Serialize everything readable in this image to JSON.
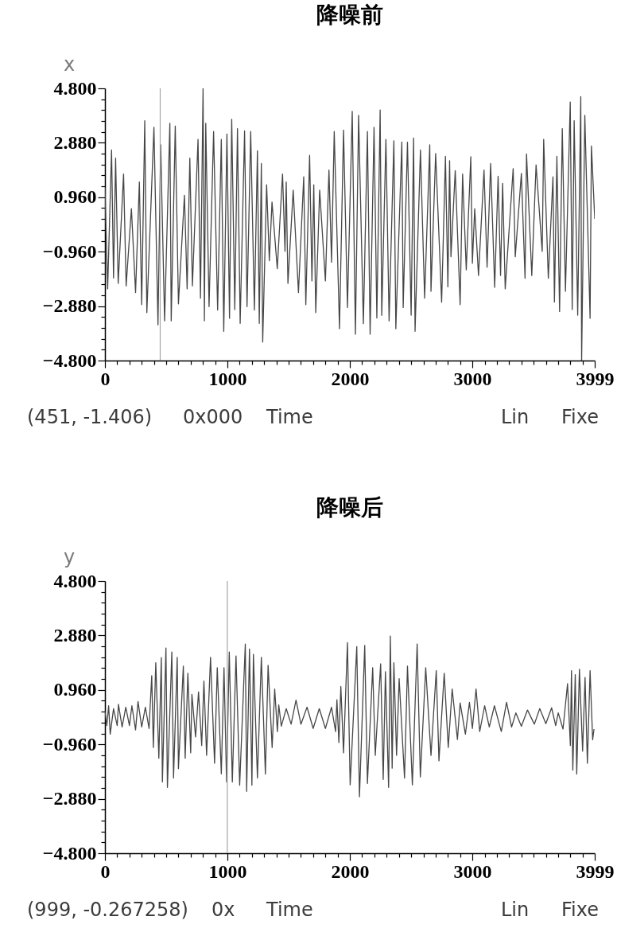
{
  "chart_data": [
    {
      "type": "line",
      "title": "降噪前",
      "color": "#474747",
      "x": [
        0,
        22,
        54,
        70,
        87,
        108,
        152,
        173,
        216,
        250,
        281,
        300,
        325,
        342,
        400,
        433,
        455,
        487,
        530,
        541,
        574,
        600,
        649,
        671,
        693,
        714,
        760,
        780,
        801,
        812,
        823,
        850,
        887,
        920,
        950,
        970,
        996,
        1017,
        1035,
        1060,
        1082,
        1104,
        1140,
        1160,
        1190,
        1220,
        1245,
        1260,
        1277,
        1288,
        1320,
        1342,
        1364,
        1407,
        1450,
        1470,
        1480,
        1494,
        1537,
        1580,
        1623,
        1640,
        1671,
        1690,
        1705,
        1721,
        1753,
        1800,
        1829,
        1850,
        1872,
        1915,
        1948,
        1980,
        2019,
        2045,
        2071,
        2110,
        2143,
        2165,
        2197,
        2220,
        2247,
        2260,
        2294,
        2320,
        2359,
        2375,
        2424,
        2435,
        2470,
        2500,
        2520,
        2532,
        2576,
        2610,
        2652,
        2662,
        2700,
        2749,
        2780,
        2800,
        2814,
        2825,
        2860,
        2900,
        2920,
        2950,
        2987,
        3000,
        3019,
        3050,
        3095,
        3120,
        3149,
        3182,
        3210,
        3230,
        3247,
        3268,
        3333,
        3350,
        3400,
        3430,
        3442,
        3485,
        3520,
        3570,
        3582,
        3620,
        3658,
        3670,
        3690,
        3712,
        3734,
        3760,
        3799,
        3815,
        3831,
        3860,
        3885,
        3892,
        3918,
        3961,
        3972,
        3999
      ],
      "values": [
        1.3,
        -2.27,
        2.63,
        -1.89,
        2.34,
        -2.08,
        1.78,
        -2.17,
        0.56,
        -2.4,
        1.5,
        -2.83,
        3.66,
        -3.11,
        3.43,
        -3.54,
        2.81,
        -3.4,
        3.57,
        -3.4,
        3.47,
        -2.8,
        1.03,
        -2.27,
        2.34,
        -2.17,
        3.0,
        -2.6,
        4.8,
        -3.4,
        3.57,
        -2.9,
        3.28,
        -3.02,
        3.0,
        -3.77,
        3.19,
        -3.31,
        3.71,
        -3.0,
        3.38,
        -3.49,
        3.3,
        -2.9,
        3.28,
        -3.02,
        2.6,
        -3.49,
        2.15,
        -4.15,
        1.4,
        -1.28,
        0.79,
        -1.56,
        1.78,
        -0.95,
        1.5,
        -2.08,
        1.21,
        -2.4,
        1.68,
        -2.83,
        2.44,
        -1.99,
        1.4,
        -3.11,
        1.21,
        -1.99,
        1.92,
        -1.33,
        3.28,
        -3.68,
        3.33,
        -2.93,
        3.99,
        -3.87,
        3.85,
        -3.5,
        3.28,
        -3.87,
        3.43,
        -3.3,
        4.04,
        -3.21,
        3.0,
        -3.4,
        2.95,
        -3.68,
        2.91,
        -2.93,
        2.9,
        -3.2,
        3.05,
        -3.77,
        2.63,
        -2.6,
        2.81,
        -2.36,
        2.5,
        -2.74,
        2.4,
        -2.2,
        2.25,
        -1.14,
        1.9,
        -2.83,
        1.78,
        -1.6,
        2.39,
        -1.37,
        0.56,
        -1.8,
        1.92,
        -1.51,
        2.15,
        -2.22,
        1.7,
        -1.8,
        1.45,
        -2.27,
        1.97,
        -1.14,
        1.8,
        -1.9,
        2.49,
        -1.8,
        2.1,
        -0.95,
        3.0,
        -1.9,
        1.68,
        -2.74,
        2.4,
        -3.07,
        3.38,
        -2.36,
        4.32,
        -3.0,
        3.66,
        -3.2,
        4.51,
        -4.8,
        3.85,
        -3.31,
        2.77,
        0.2
      ],
      "xlim": [
        0,
        3999
      ],
      "ylim": [
        -4.8,
        4.8
      ],
      "xticks": [
        0,
        {
          "value": 100,
          "label": null
        },
        {
          "value": 200,
          "label": null
        },
        {
          "value": 300,
          "label": null
        },
        {
          "value": 400,
          "label": null
        },
        {
          "value": 500,
          "label": null
        },
        {
          "value": 600,
          "label": null
        },
        {
          "value": 700,
          "label": null
        },
        {
          "value": 800,
          "label": null
        },
        {
          "value": 900,
          "label": null
        },
        1000,
        {
          "value": 1100,
          "label": null
        },
        {
          "value": 1200,
          "label": null
        },
        {
          "value": 1300,
          "label": null
        },
        {
          "value": 1400,
          "label": null
        },
        {
          "value": 1500,
          "label": null
        },
        {
          "value": 1600,
          "label": null
        },
        {
          "value": 1700,
          "label": null
        },
        {
          "value": 1800,
          "label": null
        },
        {
          "value": 1900,
          "label": null
        },
        2000,
        {
          "value": 2100,
          "label": null
        },
        {
          "value": 2200,
          "label": null
        },
        {
          "value": 2300,
          "label": null
        },
        {
          "value": 2400,
          "label": null
        },
        {
          "value": 2500,
          "label": null
        },
        {
          "value": 2600,
          "label": null
        },
        {
          "value": 2700,
          "label": null
        },
        {
          "value": 2800,
          "label": null
        },
        {
          "value": 2900,
          "label": null
        },
        3000,
        {
          "value": 3100,
          "label": null
        },
        {
          "value": 3200,
          "label": null
        },
        {
          "value": 3300,
          "label": null
        },
        {
          "value": 3400,
          "label": null
        },
        {
          "value": 3500,
          "label": null
        },
        {
          "value": 3600,
          "label": null
        },
        {
          "value": 3700,
          "label": null
        },
        {
          "value": 3800,
          "label": null
        },
        {
          "value": 3900,
          "label": null
        },
        3999
      ],
      "yticks": [
        {
          "value": 4.8,
          "label": "4.800"
        },
        {
          "value": 4.416,
          "label": null
        },
        {
          "value": 4.032,
          "label": null
        },
        {
          "value": 3.648,
          "label": null
        },
        {
          "value": 3.264,
          "label": null
        },
        {
          "value": 2.88,
          "label": "2.880"
        },
        {
          "value": 2.496,
          "label": null
        },
        {
          "value": 2.112,
          "label": null
        },
        {
          "value": 1.728,
          "label": null
        },
        {
          "value": 1.344,
          "label": null
        },
        {
          "value": 0.96,
          "label": "0.960"
        },
        {
          "value": 0.576,
          "label": null
        },
        {
          "value": 0.192,
          "label": null
        },
        {
          "value": -0.192,
          "label": null
        },
        {
          "value": -0.576,
          "label": null
        },
        {
          "value": -0.96,
          "label": "−0.960"
        },
        {
          "value": -1.344,
          "label": null
        },
        {
          "value": -1.728,
          "label": null
        },
        {
          "value": -2.112,
          "label": null
        },
        {
          "value": -2.496,
          "label": null
        },
        {
          "value": -2.88,
          "label": "−2.880"
        },
        {
          "value": -3.264,
          "label": null
        },
        {
          "value": -3.648,
          "label": null
        },
        {
          "value": -4.032,
          "label": null
        },
        {
          "value": -4.416,
          "label": null
        },
        {
          "value": -4.8,
          "label": "−4.800"
        }
      ],
      "ref_lines": [
        {
          "axis": "x",
          "value": 451,
          "color": "#a6a6a6"
        }
      ],
      "annotations": [
        "x",
        "(451, -1.406)",
        "0x000",
        "Time",
        "Lin",
        "Fixe"
      ]
    },
    {
      "type": "line",
      "title": "降噪后",
      "color": "#474747",
      "x": [
        0,
        15,
        30,
        43,
        70,
        100,
        110,
        140,
        170,
        200,
        220,
        250,
        270,
        300,
        330,
        360,
        382,
        395,
        415,
        440,
        460,
        469,
        498,
        510,
        546,
        560,
        590,
        600,
        640,
        655,
        677,
        700,
        710,
        740,
        764,
        790,
        808,
        830,
        862,
        895,
        917,
        950,
        972,
        993,
        1015,
        1040,
        1070,
        1100,
        1146,
        1157,
        1180,
        1200,
        1212,
        1245,
        1277,
        1310,
        1332,
        1365,
        1386,
        1408,
        1419,
        1440,
        1480,
        1520,
        1560,
        1600,
        1650,
        1700,
        1750,
        1800,
        1850,
        1883,
        1894,
        1910,
        1926,
        1948,
        1980,
        2002,
        2056,
        2078,
        2121,
        2143,
        2186,
        2207,
        2251,
        2272,
        2290,
        2316,
        2330,
        2345,
        2359,
        2381,
        2402,
        2446,
        2470,
        2510,
        2549,
        2575,
        2619,
        2662,
        2705,
        2727,
        2770,
        2803,
        2835,
        2878,
        2900,
        2943,
        2976,
        3000,
        3030,
        3060,
        3100,
        3138,
        3180,
        3236,
        3279,
        3320,
        3355,
        3400,
        3450,
        3506,
        3550,
        3600,
        3647,
        3680,
        3701,
        3740,
        3777,
        3800,
        3809,
        3820,
        3840,
        3852,
        3874,
        3900,
        3920,
        3939,
        3961,
        3982,
        3993
      ],
      "values": [
        0.2,
        -0.3,
        0.4,
        -0.6,
        0.3,
        -0.3,
        0.45,
        -0.35,
        0.35,
        -0.3,
        0.4,
        -0.45,
        0.55,
        -0.35,
        0.35,
        -0.4,
        1.46,
        -1.07,
        1.92,
        -1.45,
        2.1,
        -2.29,
        2.44,
        -2.48,
        2.3,
        -2.15,
        2.11,
        -1.82,
        1.8,
        -1.45,
        1.55,
        -1.26,
        0.8,
        -0.7,
        0.89,
        -1.0,
        1.27,
        -1.35,
        2.11,
        -1.63,
        1.74,
        -2.0,
        1.74,
        -2.29,
        2.3,
        -2.29,
        2.16,
        -2.4,
        2.58,
        -2.62,
        2.4,
        -2.4,
        2.21,
        -2.15,
        2.11,
        -2.01,
        1.83,
        -1.07,
        0.99,
        -0.51,
        0.43,
        -0.32,
        0.3,
        -0.25,
        0.6,
        -0.25,
        0.35,
        -0.4,
        0.3,
        -0.4,
        0.35,
        -0.51,
        0.61,
        -0.9,
        1.08,
        -1.26,
        2.63,
        -2.39,
        2.49,
        -2.81,
        2.53,
        -2.34,
        1.74,
        -1.35,
        1.88,
        -2.2,
        1.6,
        -2.48,
        2.86,
        -1.8,
        1.92,
        -1.35,
        1.36,
        -2.15,
        1.8,
        -2.39,
        2.58,
        -2.11,
        1.74,
        -1.35,
        1.64,
        -1.54,
        1.55,
        -1.07,
        0.99,
        -0.79,
        0.5,
        -0.6,
        0.52,
        -0.4,
        0.99,
        -0.51,
        0.4,
        -0.35,
        0.4,
        -0.51,
        0.52,
        -0.35,
        0.15,
        -0.32,
        0.25,
        -0.25,
        0.3,
        -0.23,
        0.33,
        -0.3,
        0.15,
        -0.42,
        1.18,
        -1.0,
        1.64,
        -1.87,
        1.5,
        -2.01,
        1.69,
        -1.2,
        1.4,
        -1.63,
        1.64,
        -0.8,
        -0.42
      ],
      "xlim": [
        0,
        3999
      ],
      "ylim": [
        -4.8,
        4.8
      ],
      "xticks": [
        0,
        {
          "value": 100,
          "label": null
        },
        {
          "value": 200,
          "label": null
        },
        {
          "value": 300,
          "label": null
        },
        {
          "value": 400,
          "label": null
        },
        {
          "value": 500,
          "label": null
        },
        {
          "value": 600,
          "label": null
        },
        {
          "value": 700,
          "label": null
        },
        {
          "value": 800,
          "label": null
        },
        {
          "value": 900,
          "label": null
        },
        1000,
        {
          "value": 1100,
          "label": null
        },
        {
          "value": 1200,
          "label": null
        },
        {
          "value": 1300,
          "label": null
        },
        {
          "value": 1400,
          "label": null
        },
        {
          "value": 1500,
          "label": null
        },
        {
          "value": 1600,
          "label": null
        },
        {
          "value": 1700,
          "label": null
        },
        {
          "value": 1800,
          "label": null
        },
        {
          "value": 1900,
          "label": null
        },
        2000,
        {
          "value": 2100,
          "label": null
        },
        {
          "value": 2200,
          "label": null
        },
        {
          "value": 2300,
          "label": null
        },
        {
          "value": 2400,
          "label": null
        },
        {
          "value": 2500,
          "label": null
        },
        {
          "value": 2600,
          "label": null
        },
        {
          "value": 2700,
          "label": null
        },
        {
          "value": 2800,
          "label": null
        },
        {
          "value": 2900,
          "label": null
        },
        3000,
        {
          "value": 3100,
          "label": null
        },
        {
          "value": 3200,
          "label": null
        },
        {
          "value": 3300,
          "label": null
        },
        {
          "value": 3400,
          "label": null
        },
        {
          "value": 3500,
          "label": null
        },
        {
          "value": 3600,
          "label": null
        },
        {
          "value": 3700,
          "label": null
        },
        {
          "value": 3800,
          "label": null
        },
        {
          "value": 3900,
          "label": null
        },
        3999
      ],
      "yticks": [
        {
          "value": 4.8,
          "label": "4.800"
        },
        {
          "value": 4.416,
          "label": null
        },
        {
          "value": 4.032,
          "label": null
        },
        {
          "value": 3.648,
          "label": null
        },
        {
          "value": 3.264,
          "label": null
        },
        {
          "value": 2.88,
          "label": "2.880"
        },
        {
          "value": 2.496,
          "label": null
        },
        {
          "value": 2.112,
          "label": null
        },
        {
          "value": 1.728,
          "label": null
        },
        {
          "value": 1.344,
          "label": null
        },
        {
          "value": 0.96,
          "label": "0.960"
        },
        {
          "value": 0.576,
          "label": null
        },
        {
          "value": 0.192,
          "label": null
        },
        {
          "value": -0.192,
          "label": null
        },
        {
          "value": -0.576,
          "label": null
        },
        {
          "value": -0.96,
          "label": "−0.960"
        },
        {
          "value": -1.344,
          "label": null
        },
        {
          "value": -1.728,
          "label": null
        },
        {
          "value": -2.112,
          "label": null
        },
        {
          "value": -2.496,
          "label": null
        },
        {
          "value": -2.88,
          "label": "−2.880"
        },
        {
          "value": -3.264,
          "label": null
        },
        {
          "value": -3.648,
          "label": null
        },
        {
          "value": -4.032,
          "label": null
        },
        {
          "value": -4.416,
          "label": null
        },
        {
          "value": -4.8,
          "label": "−4.800"
        }
      ],
      "ref_lines": [
        {
          "axis": "x",
          "value": 999,
          "color": "#a6a6a6"
        }
      ],
      "annotations": [
        "y",
        "(999, -0.267258)",
        "0x",
        "Time",
        "Lin",
        "Fixe"
      ]
    }
  ]
}
